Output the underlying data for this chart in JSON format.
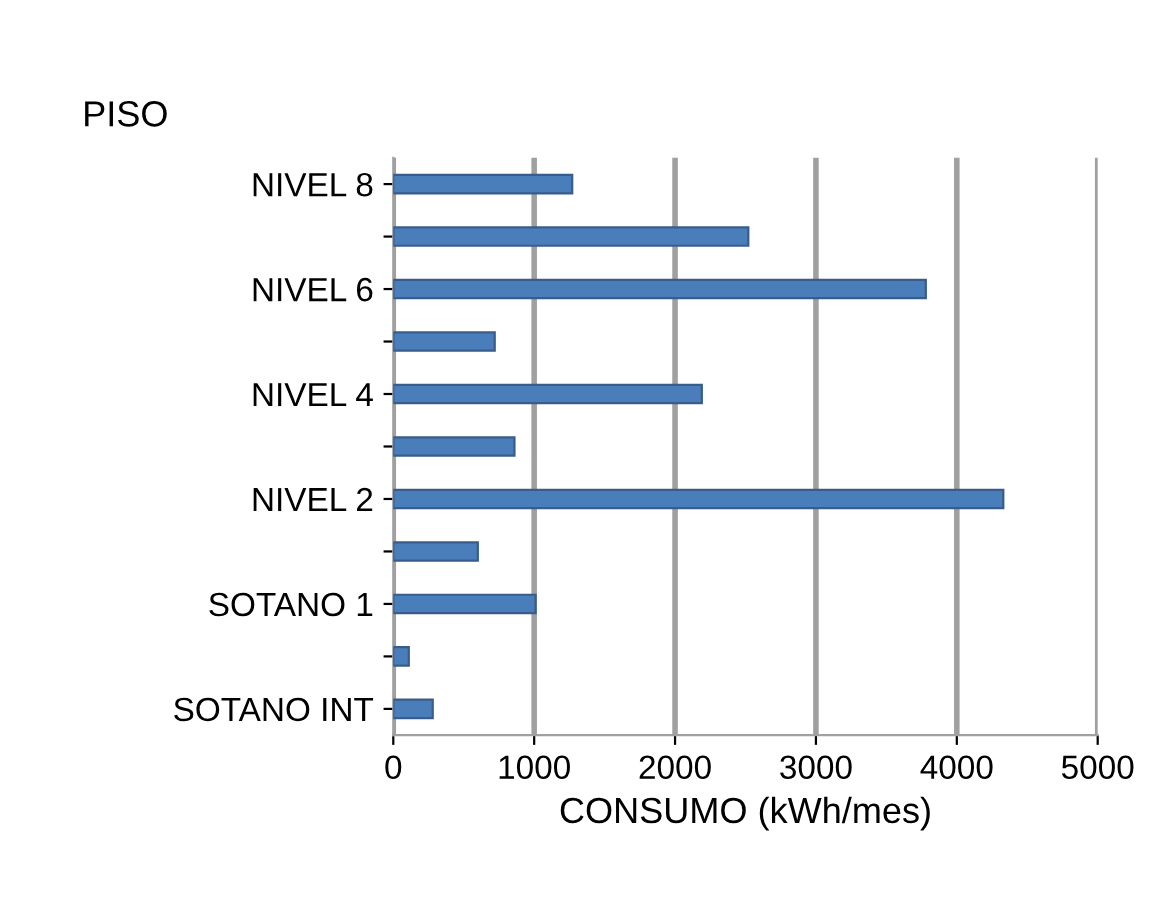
{
  "chart_data": {
    "type": "bar",
    "orientation": "horizontal",
    "title": "PISO",
    "xlabel": "CONSUMO (kWh/mes)",
    "categories": [
      "NIVEL 8",
      null,
      "NIVEL 6",
      null,
      "NIVEL 4",
      null,
      "NIVEL 2",
      null,
      "SOTANO 1",
      null,
      "SOTANO INT"
    ],
    "values": [
      1270,
      2520,
      3780,
      720,
      2190,
      860,
      4330,
      600,
      1010,
      110,
      280
    ],
    "color": "#4a7ebb",
    "xlim": [
      0,
      5000
    ],
    "xticks": [
      0,
      1000,
      2000,
      3000,
      4000,
      5000
    ],
    "grid": "x",
    "legend": false
  }
}
